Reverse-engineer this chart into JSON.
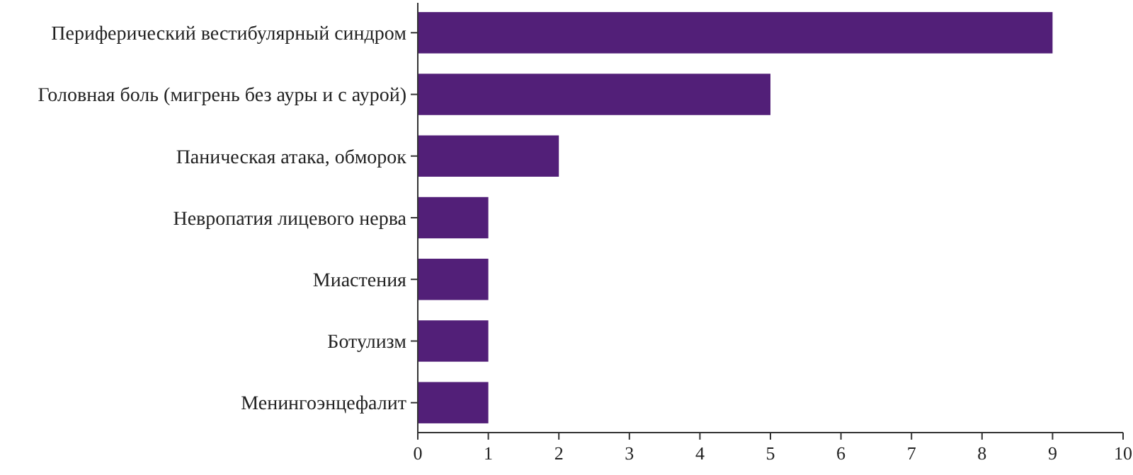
{
  "chart_data": {
    "type": "bar",
    "orientation": "horizontal",
    "categories": [
      "Периферический вестибулярный синдром",
      "Головная боль (мигрень без ауры и с аурой)",
      "Паническая атака, обморок",
      "Невропатия лицевого нерва",
      "Миастения",
      "Ботулизм",
      "Менингоэнцефалит"
    ],
    "values": [
      9,
      5,
      2,
      1,
      1,
      1,
      1
    ],
    "color": "#521f78",
    "xlim": [
      0,
      10
    ],
    "xticks": [
      0,
      1,
      2,
      3,
      4,
      5,
      6,
      7,
      8,
      9,
      10
    ],
    "grid": false
  }
}
